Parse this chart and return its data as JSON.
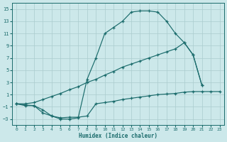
{
  "xlabel": "Humidex (Indice chaleur)",
  "background_color": "#cce8ea",
  "grid_color": "#aaccce",
  "line_color": "#1a6b6b",
  "xlim": [
    -0.5,
    23.5
  ],
  "ylim": [
    -4,
    16
  ],
  "xticks": [
    0,
    1,
    2,
    3,
    4,
    5,
    6,
    7,
    8,
    9,
    10,
    11,
    12,
    13,
    14,
    15,
    16,
    17,
    18,
    19,
    20,
    21,
    22,
    23
  ],
  "yticks": [
    -3,
    -1,
    1,
    3,
    5,
    7,
    9,
    11,
    13,
    15
  ],
  "curve_bell_x": [
    0,
    1,
    2,
    3,
    4,
    5,
    6,
    7,
    8,
    9,
    10,
    11,
    12,
    13,
    14,
    15,
    16,
    17,
    18,
    19,
    20,
    21
  ],
  "curve_bell_y": [
    -0.5,
    -0.7,
    -0.8,
    -2.0,
    -2.5,
    -3.0,
    -3.0,
    -2.8,
    3.5,
    7.0,
    11.0,
    12.0,
    13.0,
    14.5,
    14.7,
    14.7,
    14.5,
    13.0,
    11.0,
    9.5,
    7.5,
    2.5
  ],
  "curve_diag_x": [
    0,
    1,
    2,
    3,
    4,
    5,
    6,
    7,
    8,
    9,
    10,
    11,
    12,
    13,
    14,
    15,
    16,
    17,
    18,
    19,
    20,
    21
  ],
  "curve_diag_y": [
    -0.5,
    -0.5,
    -0.3,
    0.2,
    0.7,
    1.2,
    1.8,
    2.3,
    3.0,
    3.5,
    4.2,
    4.8,
    5.5,
    6.0,
    6.5,
    7.0,
    7.5,
    8.0,
    8.5,
    9.5,
    7.5,
    2.5
  ],
  "curve_flat_x": [
    0,
    1,
    2,
    3,
    4,
    5,
    6,
    7,
    8,
    9,
    10,
    11,
    12,
    13,
    14,
    15,
    16,
    17,
    18,
    19,
    20,
    21,
    22,
    23
  ],
  "curve_flat_y": [
    -0.5,
    -0.8,
    -0.8,
    -1.5,
    -2.5,
    -2.8,
    -2.7,
    -2.7,
    -2.5,
    -0.5,
    -0.3,
    -0.1,
    0.2,
    0.4,
    0.6,
    0.8,
    1.0,
    1.1,
    1.2,
    1.4,
    1.5,
    1.5,
    1.5,
    1.5
  ]
}
